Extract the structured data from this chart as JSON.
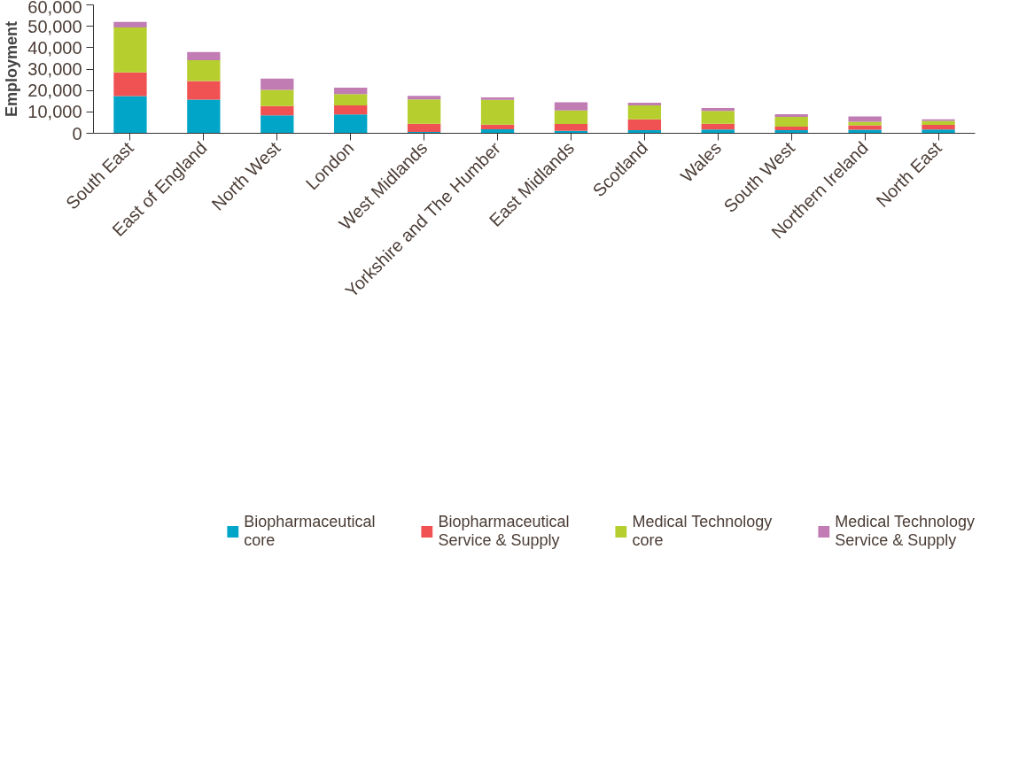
{
  "chart_data": {
    "type": "bar",
    "stacked": true,
    "ylabel": "Employment",
    "categories": [
      "South East",
      "East of England",
      "North West",
      "London",
      "West Midlands",
      "Yorkshire and The Humber",
      "East Midlands",
      "Scotland",
      "Wales",
      "South West",
      "Northern Ireland",
      "North East"
    ],
    "series": [
      {
        "name": "Biopharmaceutical core",
        "color": "#00a5c8",
        "values": [
          17400,
          15700,
          8400,
          8800,
          600,
          1900,
          1100,
          1500,
          1800,
          1500,
          1700,
          1800
        ]
      },
      {
        "name": "Biopharmaceutical Service & Supply",
        "color": "#f05253",
        "values": [
          11100,
          8700,
          4300,
          4200,
          3900,
          2100,
          3200,
          5000,
          2600,
          1600,
          2000,
          2100
        ]
      },
      {
        "name": "Medical Technology core",
        "color": "#b7cf2e",
        "values": [
          21000,
          9700,
          7600,
          5300,
          11300,
          11600,
          6400,
          6500,
          6100,
          4600,
          1700,
          1900
        ]
      },
      {
        "name": "Medical Technology Service & Supply",
        "color": "#c07cb3",
        "values": [
          2500,
          3900,
          5300,
          3000,
          1700,
          1200,
          3800,
          1300,
          1300,
          1200,
          2500,
          700
        ]
      }
    ],
    "ylim": [
      0,
      60000
    ],
    "yticks": [
      {
        "value": 0,
        "label": "0"
      },
      {
        "value": 10000,
        "label": "10,000"
      },
      {
        "value": 20000,
        "label": "20,000"
      },
      {
        "value": 30000,
        "label": "30,000"
      },
      {
        "value": 40000,
        "label": "40,000"
      },
      {
        "value": 50000,
        "label": "50,000"
      },
      {
        "value": 60000,
        "label": "60,000"
      }
    ],
    "grid": false,
    "legend": "bottom"
  }
}
